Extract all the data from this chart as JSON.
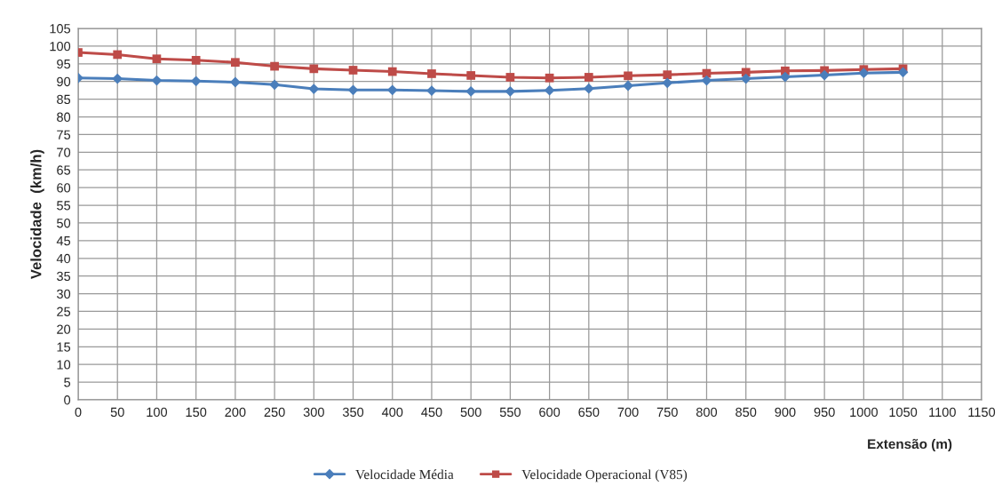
{
  "chart_data": {
    "type": "line",
    "xlabel": "Extensão (m)",
    "ylabel": "Velocidade  (km/h)",
    "x": [
      0,
      50,
      100,
      150,
      200,
      250,
      300,
      350,
      400,
      450,
      500,
      550,
      600,
      650,
      700,
      750,
      800,
      850,
      900,
      950,
      1000,
      1050
    ],
    "series": [
      {
        "name": "Velocidade Média",
        "color": "#4a7ebb",
        "marker": "diamond",
        "values": [
          91.0,
          90.8,
          90.3,
          90.1,
          89.8,
          89.1,
          87.9,
          87.6,
          87.6,
          87.4,
          87.2,
          87.2,
          87.5,
          88.0,
          88.8,
          89.6,
          90.3,
          90.8,
          91.3,
          91.8,
          92.4,
          92.6
        ]
      },
      {
        "name": "Velocidade Operacional (V85)",
        "color": "#be4b48",
        "marker": "square",
        "values": [
          98.2,
          97.6,
          96.4,
          96.0,
          95.4,
          94.3,
          93.6,
          93.2,
          92.8,
          92.2,
          91.7,
          91.2,
          91.0,
          91.2,
          91.6,
          91.9,
          92.3,
          92.6,
          93.0,
          93.1,
          93.4,
          93.6
        ]
      }
    ],
    "xlim": [
      0,
      1150
    ],
    "xticks": [
      0,
      50,
      100,
      150,
      200,
      250,
      300,
      350,
      400,
      450,
      500,
      550,
      600,
      650,
      700,
      750,
      800,
      850,
      900,
      950,
      1000,
      1050,
      1100,
      1150
    ],
    "ylim": [
      0,
      105
    ],
    "yticks": [
      0,
      5,
      10,
      15,
      20,
      25,
      30,
      35,
      40,
      45,
      50,
      55,
      60,
      65,
      70,
      75,
      80,
      85,
      90,
      95,
      100,
      105
    ],
    "grid": true,
    "legend": "bottom"
  }
}
